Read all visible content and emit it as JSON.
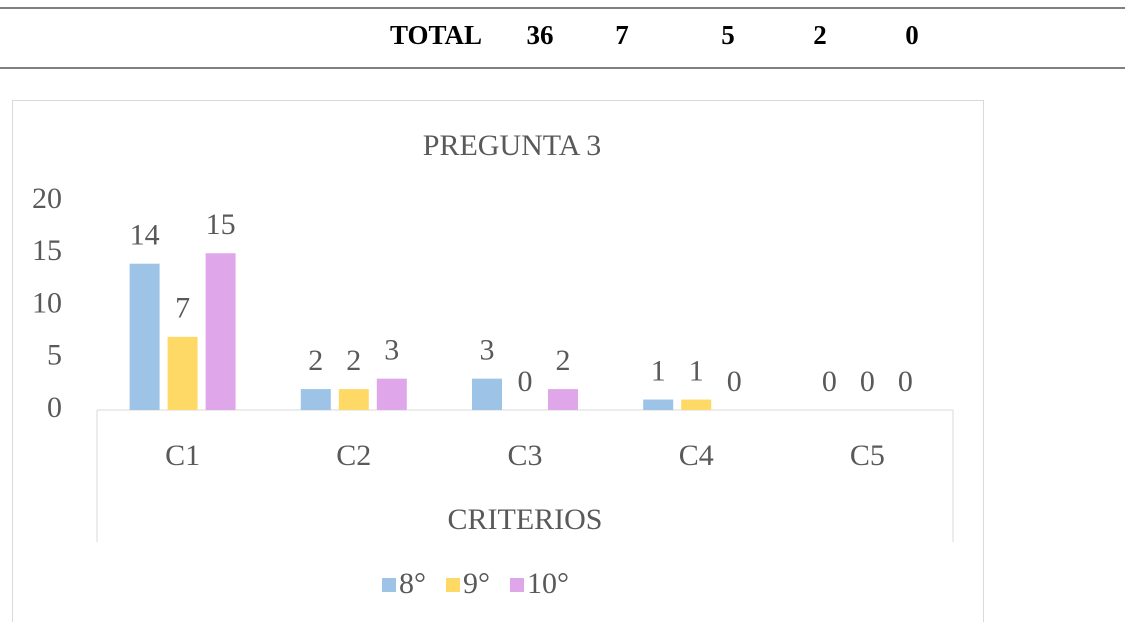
{
  "table": {
    "rows": [
      [
        "TOTAL",
        "36",
        "7",
        "5",
        "2",
        "0"
      ]
    ]
  },
  "chart_data": {
    "type": "bar",
    "title": "PREGUNTA 3",
    "x_label": "CRITERIOS",
    "categories": [
      "C1",
      "C2",
      "C3",
      "C4",
      "C5"
    ],
    "series": [
      {
        "name": "8°",
        "color": "#9dc3e6",
        "values": [
          14,
          2,
          3,
          1,
          0
        ]
      },
      {
        "name": "9°",
        "color": "#ffd966",
        "values": [
          7,
          2,
          0,
          1,
          0
        ]
      },
      {
        "name": "10°",
        "color": "#dfa6e9",
        "values": [
          15,
          3,
          2,
          0,
          0
        ]
      }
    ],
    "ylim": [
      0,
      20
    ],
    "yticks": [
      0,
      5,
      10,
      15,
      20
    ],
    "grid": false,
    "legend": "bottom",
    "data_labels": true
  }
}
